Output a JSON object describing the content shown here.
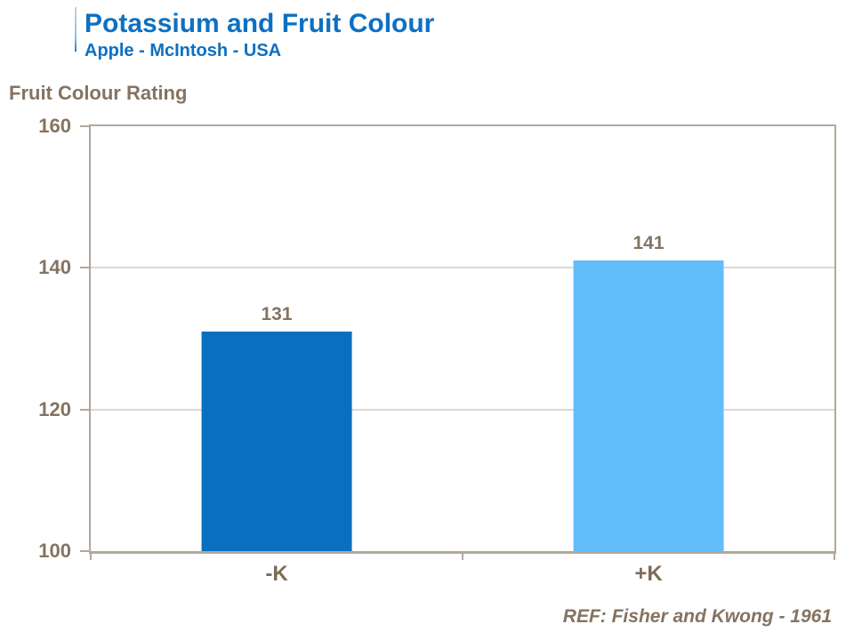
{
  "header": {
    "title": "Potassium and Fruit Colour",
    "subtitle": "Apple - McIntosh - USA"
  },
  "footer": {
    "reference": "REF: Fisher and Kwong - 1961"
  },
  "colors": {
    "title_blue": "#0d70c2",
    "label_brown": "#857361",
    "axis_line": "#b2a89b",
    "gridline": "#b9b0a4",
    "bar_minus_k": "#0970c0",
    "bar_plus_k": "#63bdfb"
  },
  "chart_data": {
    "type": "bar",
    "title": "Potassium and Fruit Colour",
    "subtitle": "Apple - McIntosh - USA",
    "ylabel": "Fruit Colour Rating",
    "xlabel": "",
    "categories": [
      "-K",
      "+K"
    ],
    "values": [
      131,
      141
    ],
    "bar_colors": [
      "#0970c0",
      "#63bdfb"
    ],
    "data_labels": [
      "131",
      "141"
    ],
    "ylim": [
      100,
      160
    ],
    "yticks": [
      100,
      120,
      140,
      160
    ],
    "grid": "horizontal",
    "legend": "none",
    "annotation": "REF: Fisher and Kwong - 1961"
  }
}
